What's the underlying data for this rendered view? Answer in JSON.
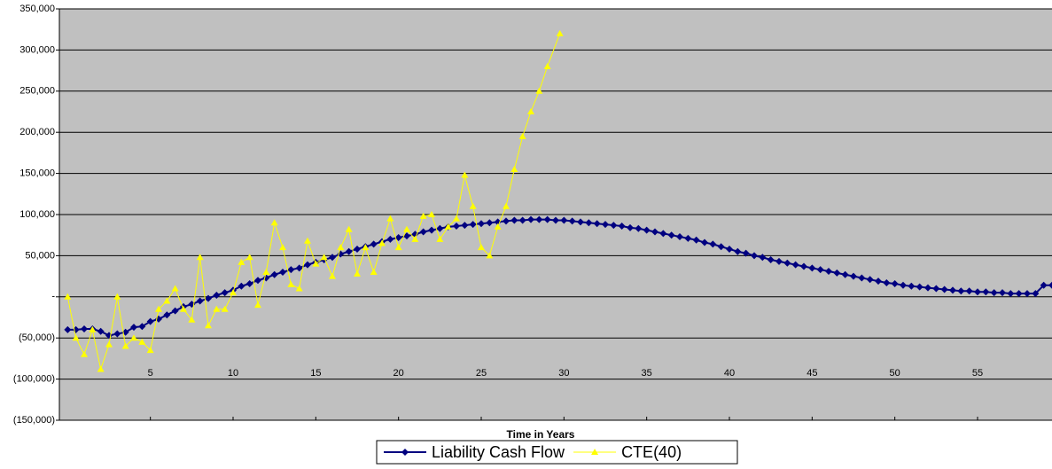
{
  "chart_data": {
    "type": "line",
    "x_label": "Time in Years",
    "xlim": [
      -0.5,
      59.5
    ],
    "xticks": [
      5,
      10,
      15,
      20,
      25,
      30,
      35,
      40,
      45,
      50,
      55
    ],
    "ylim": [
      -150000,
      350000
    ],
    "yticks": [
      {
        "value": -150000,
        "label": "(150,000)"
      },
      {
        "value": -100000,
        "label": "(100,000)"
      },
      {
        "value": -50000,
        "label": "(50,000)"
      },
      {
        "value": 0,
        "label": "-"
      },
      {
        "value": 50000,
        "label": "50,000"
      },
      {
        "value": 100000,
        "label": "100,000"
      },
      {
        "value": 150000,
        "label": "150,000"
      },
      {
        "value": 200000,
        "label": "200,000"
      },
      {
        "value": 250000,
        "label": "250,000"
      },
      {
        "value": 300000,
        "label": "300,000"
      },
      {
        "value": 350000,
        "label": "350,000"
      }
    ],
    "grid": true,
    "legend": "bottom",
    "series": [
      {
        "name": "Liability Cash Flow",
        "color": "#000080",
        "marker": "diamond",
        "x": [
          0,
          0.5,
          1,
          1.5,
          2,
          2.5,
          3,
          3.5,
          4,
          4.5,
          5,
          5.5,
          6,
          6.5,
          7,
          7.5,
          8,
          8.5,
          9,
          9.5,
          10,
          10.5,
          11,
          11.5,
          12,
          12.5,
          13,
          13.5,
          14,
          14.5,
          15,
          15.5,
          16,
          16.5,
          17,
          17.5,
          18,
          18.5,
          19,
          19.5,
          20,
          20.5,
          21,
          21.5,
          22,
          22.5,
          23,
          23.5,
          24,
          24.5,
          25,
          25.5,
          26,
          26.5,
          27,
          27.5,
          28,
          28.5,
          29,
          29.5,
          30,
          30.5,
          31,
          31.5,
          32,
          32.5,
          33,
          33.5,
          34,
          34.5,
          35,
          35.5,
          36,
          36.5,
          37,
          37.5,
          38,
          38.5,
          39,
          39.5,
          40,
          40.5,
          41,
          41.5,
          42,
          42.5,
          43,
          43.5,
          44,
          44.5,
          45,
          45.5,
          46,
          46.5,
          47,
          47.5,
          48,
          48.5,
          49,
          49.5,
          50,
          50.5,
          51,
          51.5,
          52,
          52.5,
          53,
          53.5,
          54,
          54.5,
          55,
          55.5,
          56,
          56.5,
          57,
          57.5,
          58,
          58.5,
          59,
          59.5
        ],
        "values": [
          -40000,
          -40000,
          -39000,
          -39000,
          -42000,
          -47000,
          -45000,
          -43000,
          -37000,
          -36000,
          -30000,
          -27000,
          -22000,
          -17000,
          -12000,
          -9000,
          -5000,
          -2000,
          2000,
          5000,
          8000,
          13000,
          16000,
          20000,
          23000,
          27000,
          30000,
          33000,
          35000,
          39000,
          42000,
          45000,
          48000,
          52000,
          55000,
          58000,
          61000,
          64000,
          67000,
          70000,
          72000,
          74000,
          76000,
          79000,
          81000,
          83000,
          85000,
          86000,
          87000,
          88000,
          89000,
          90000,
          91000,
          92000,
          93000,
          93000,
          94000,
          94000,
          94000,
          93000,
          93000,
          92000,
          91000,
          90000,
          89000,
          88000,
          87000,
          86000,
          84000,
          83000,
          81000,
          79000,
          77000,
          75000,
          73000,
          71000,
          69000,
          66000,
          64000,
          61000,
          58000,
          55000,
          53000,
          50000,
          48000,
          45000,
          43000,
          41000,
          39000,
          37000,
          35000,
          33000,
          31000,
          29000,
          27000,
          25000,
          23000,
          21000,
          19000,
          17000,
          16000,
          14000,
          13000,
          12000,
          11000,
          10000,
          9000,
          8000,
          7000,
          7000,
          6000,
          6000,
          5000,
          5000,
          4000,
          4000,
          4000,
          4000,
          14000,
          14000
        ]
      },
      {
        "name": "CTE(40)",
        "color": "#ffff00",
        "marker": "triangle",
        "x": [
          0,
          0.5,
          1,
          1.5,
          2,
          2.5,
          3,
          3.5,
          4,
          4.5,
          5,
          5.5,
          6,
          6.5,
          7,
          7.5,
          8,
          8.5,
          9,
          9.5,
          10,
          10.5,
          11,
          11.5,
          12,
          12.5,
          13,
          13.5,
          14,
          14.5,
          15,
          15.5,
          16,
          16.5,
          17,
          17.5,
          18,
          18.5,
          19,
          19.5,
          20,
          20.5,
          21,
          21.5,
          22,
          22.5,
          23,
          23.5,
          24,
          24.5,
          25,
          25.5,
          26,
          26.5,
          27,
          27.5,
          28,
          28.5,
          29,
          29.75
        ],
        "values": [
          0,
          -50000,
          -70000,
          -40000,
          -88000,
          -58000,
          0,
          -60000,
          -50000,
          -55000,
          -65000,
          -15000,
          -5000,
          10000,
          -15000,
          -28000,
          48000,
          -35000,
          -15000,
          -15000,
          5000,
          42000,
          48000,
          -10000,
          30000,
          90000,
          60000,
          15000,
          10000,
          68000,
          40000,
          48000,
          25000,
          60000,
          82000,
          28000,
          60000,
          30000,
          65000,
          95000,
          60000,
          82000,
          70000,
          98000,
          100000,
          70000,
          85000,
          95000,
          148000,
          110000,
          60000,
          50000,
          85000,
          110000,
          155000,
          195000,
          225000,
          250000,
          280000,
          320000
        ]
      }
    ]
  }
}
